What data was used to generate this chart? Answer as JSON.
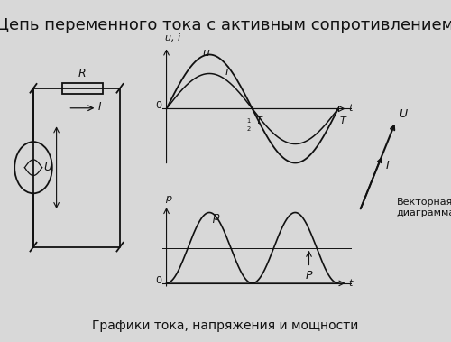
{
  "title": "Цепь переменного тока с активным сопротивлением",
  "bottom_text": "Графики тока, напряжения и мощности",
  "bg_color": "#d8d8d8",
  "line_color": "#111111",
  "label_u": "u",
  "label_i": "i",
  "label_ui_axis": "u, i",
  "label_p_axis": "p",
  "label_p": "p",
  "label_P": "P",
  "label_T": "T",
  "label_t1": "t",
  "label_t2": "t",
  "label_U_vec": "U",
  "label_I_vec": "I",
  "vector_text": "Векторная\nдиаграмма",
  "u_amplitude": 1.0,
  "i_amplitude": 0.65,
  "title_fontsize": 13,
  "annotation_fontsize": 9,
  "small_fontsize": 8
}
